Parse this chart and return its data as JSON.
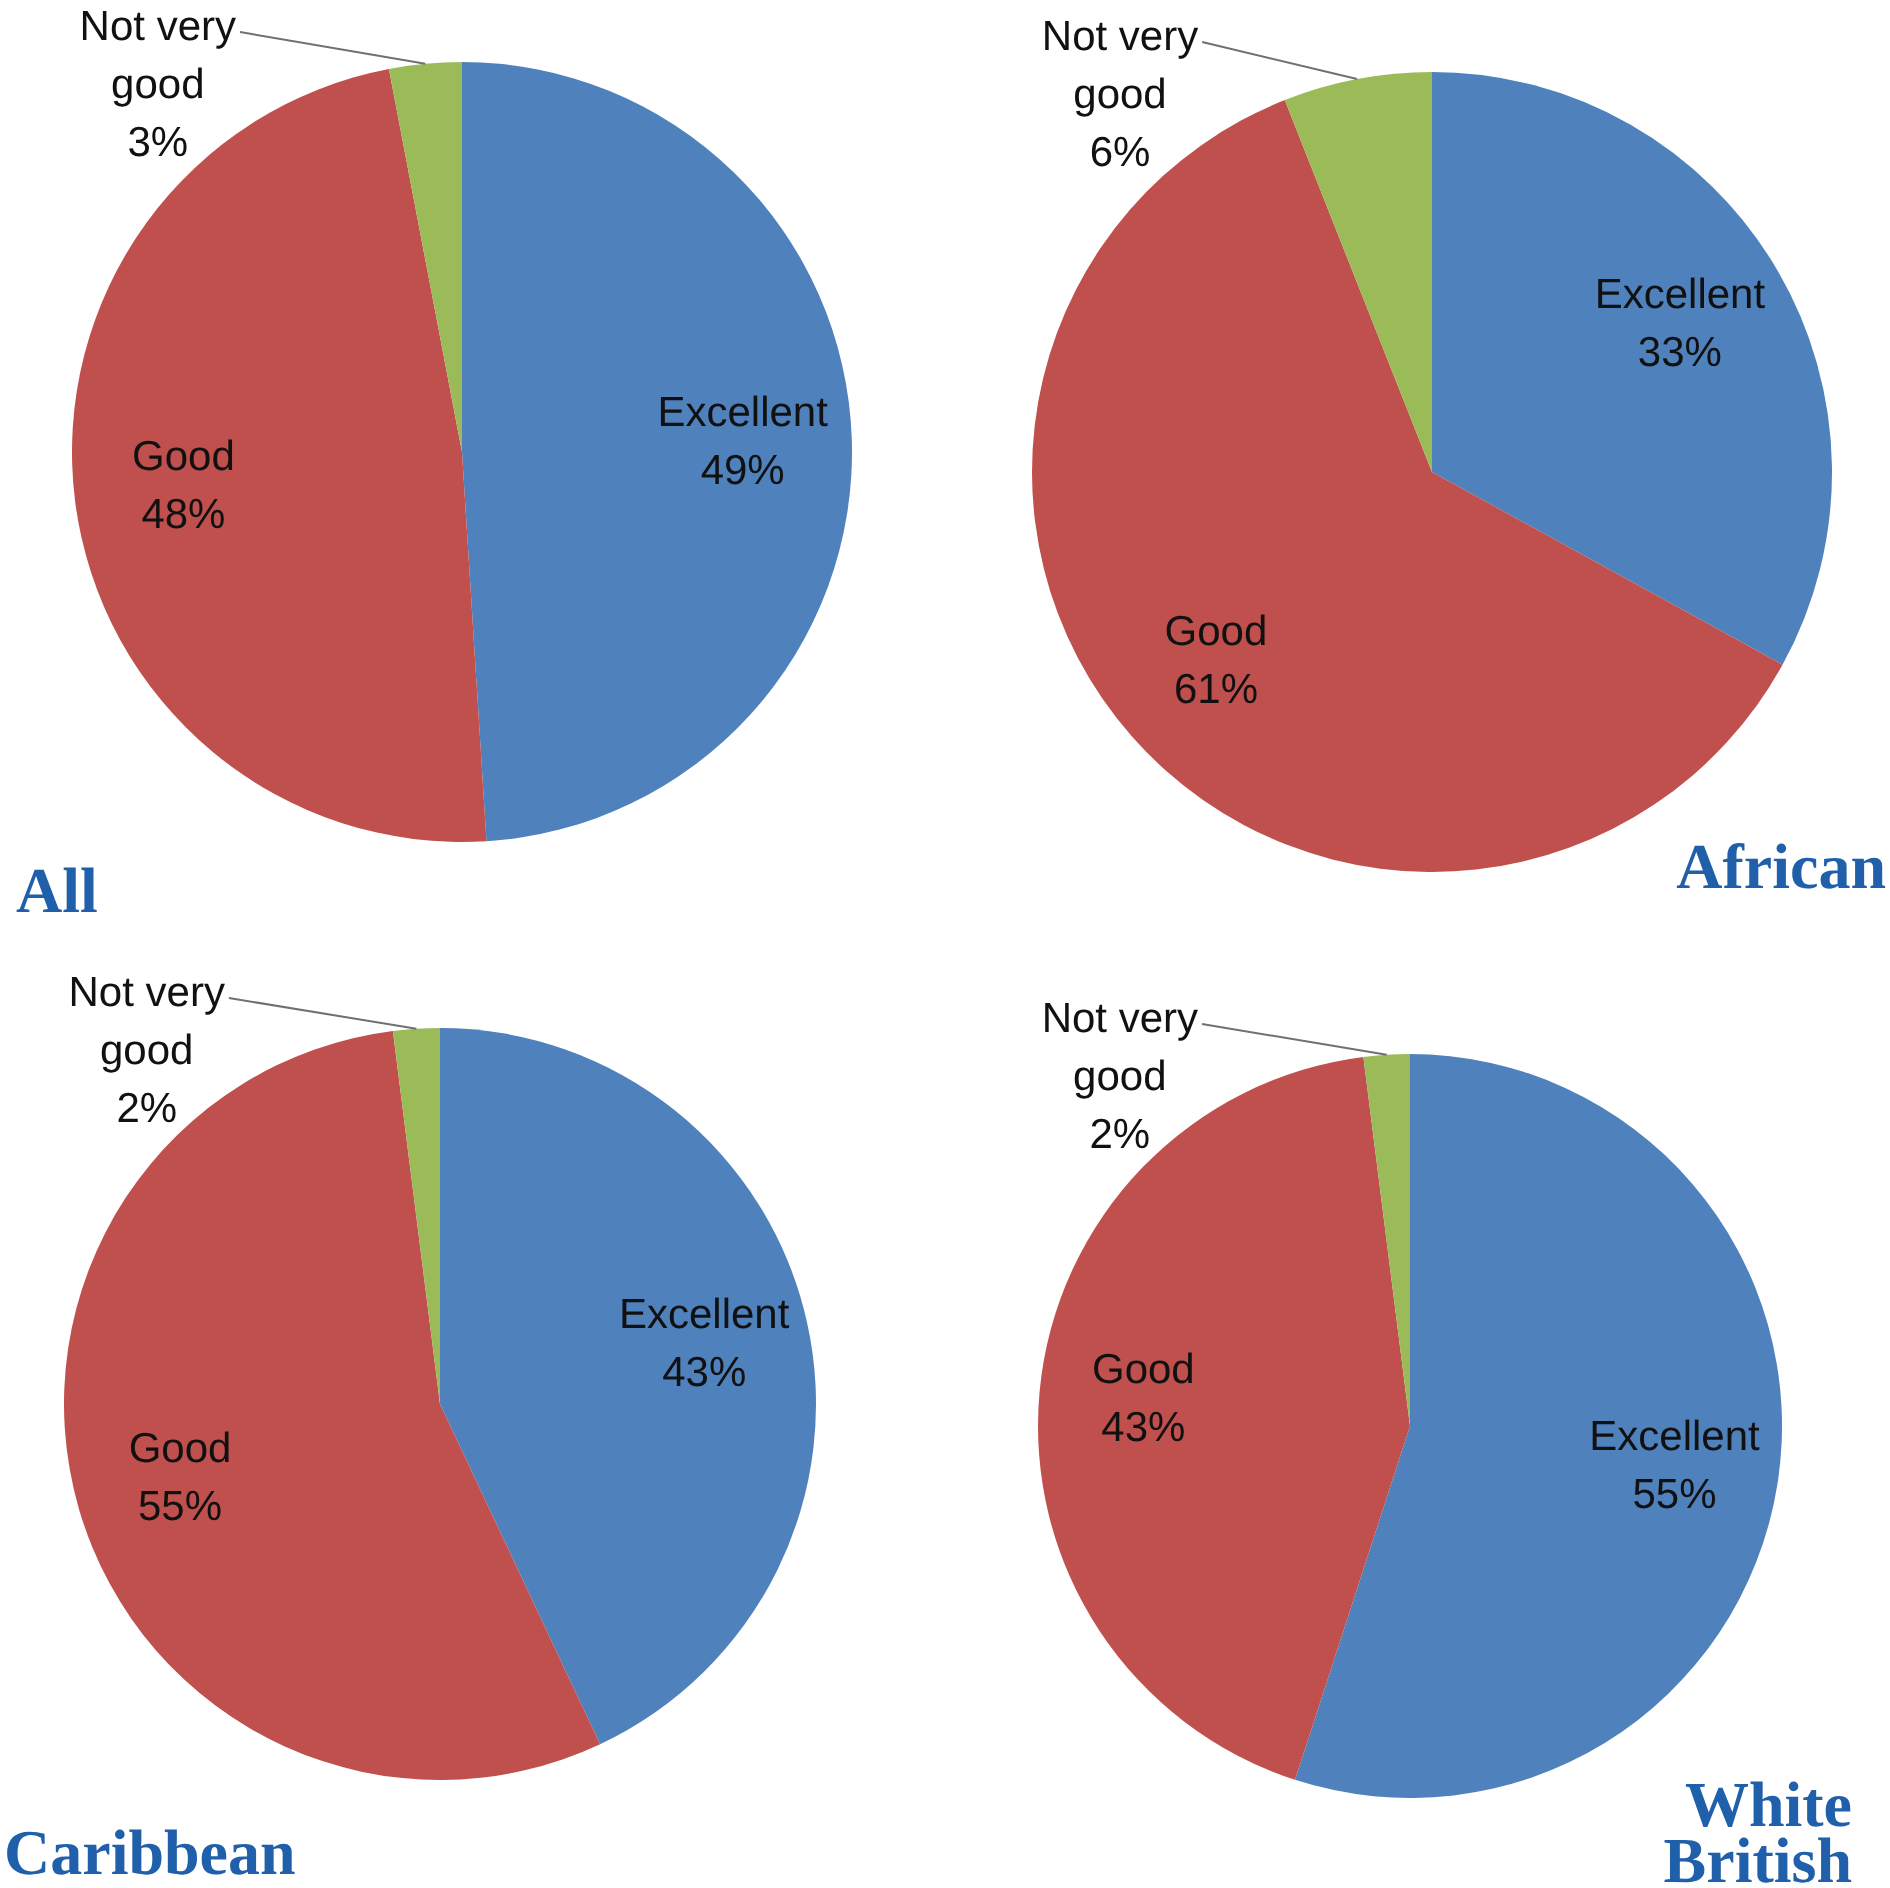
{
  "chart_data": [
    {
      "type": "pie",
      "title": "All",
      "categories": [
        "Excellent",
        "Good",
        "Not very good"
      ],
      "values": [
        49,
        48,
        3
      ],
      "colors": [
        "#4f81bd",
        "#c0504d",
        "#9bbb59"
      ],
      "value_labels": [
        "49%",
        "48%",
        "3%"
      ]
    },
    {
      "type": "pie",
      "title": "African",
      "categories": [
        "Excellent",
        "Good",
        "Not very good"
      ],
      "values": [
        33,
        61,
        6
      ],
      "colors": [
        "#4f81bd",
        "#c0504d",
        "#9bbb59"
      ],
      "value_labels": [
        "33%",
        "61%",
        "6%"
      ]
    },
    {
      "type": "pie",
      "title": "Caribbean",
      "categories": [
        "Excellent",
        "Good",
        "Not very good"
      ],
      "values": [
        43,
        55,
        2
      ],
      "colors": [
        "#4f81bd",
        "#c0504d",
        "#9bbb59"
      ],
      "value_labels": [
        "43%",
        "55%",
        "2%"
      ]
    },
    {
      "type": "pie",
      "title": "White British",
      "categories": [
        "Excellent",
        "Good",
        "Not very good"
      ],
      "values": [
        55,
        43,
        2
      ],
      "colors": [
        "#4f81bd",
        "#c0504d",
        "#9bbb59"
      ],
      "value_labels": [
        "55%",
        "43%",
        "2%"
      ]
    }
  ]
}
